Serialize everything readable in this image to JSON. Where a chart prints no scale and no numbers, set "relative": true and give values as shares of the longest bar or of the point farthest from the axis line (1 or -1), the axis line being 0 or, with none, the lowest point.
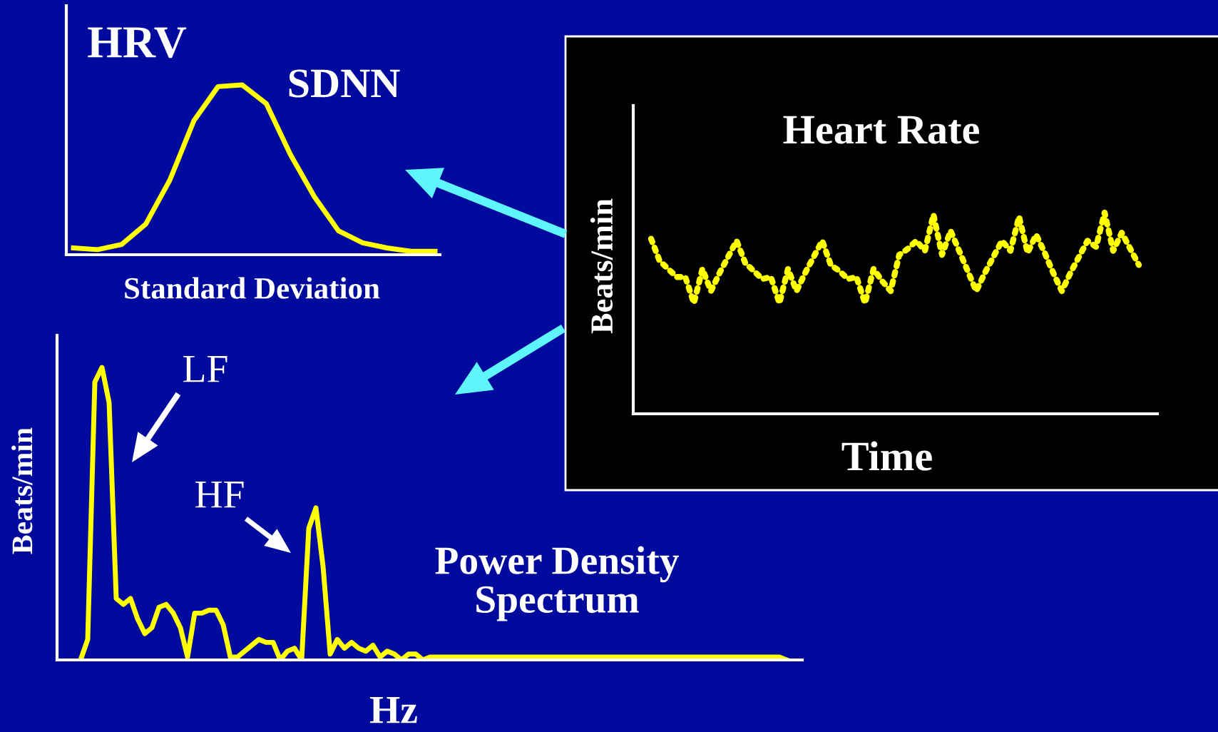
{
  "chart_data": [
    {
      "type": "line",
      "title": "HRV",
      "xlabel": "Standard Deviation",
      "annotations": [
        "SDNN"
      ],
      "relative": true,
      "line_style": "solid",
      "categories": [
        null,
        null,
        null,
        null,
        null,
        null,
        null,
        null,
        null,
        null,
        null,
        null,
        null,
        null,
        null,
        null
      ],
      "series": [
        {
          "color": "#ffff00",
          "values": [
            0.04,
            0.03,
            0.06,
            0.18,
            0.44,
            0.79,
            0.99,
            1.0,
            0.89,
            0.59,
            0.34,
            0.14,
            0.07,
            0.04,
            0.02,
            0.02
          ]
        }
      ]
    },
    {
      "type": "line",
      "title": "Heart Rate",
      "xlabel": "Time",
      "ylabel": "Beats/min",
      "relative": true,
      "line_style": "dotted",
      "categories": [
        null,
        null,
        null,
        null,
        null,
        null,
        null,
        null,
        null,
        null,
        null,
        null,
        null,
        null,
        null,
        null,
        null,
        null,
        null,
        null,
        null,
        null,
        null,
        null,
        null,
        null,
        null,
        null,
        null,
        null,
        null,
        null,
        null,
        null,
        null,
        null,
        null,
        null,
        null,
        null,
        null,
        null,
        null,
        null,
        null,
        null,
        null,
        null,
        null,
        null,
        null,
        null,
        null,
        null,
        null,
        null,
        null,
        null
      ],
      "series": [
        {
          "color": "#ffff00",
          "values": [
            0.87,
            0.76,
            0.72,
            0.68,
            0.68,
            0.55,
            0.72,
            0.61,
            0.7,
            0.78,
            0.86,
            0.75,
            0.71,
            0.67,
            0.68,
            0.55,
            0.72,
            0.61,
            0.7,
            0.78,
            0.86,
            0.74,
            0.71,
            0.67,
            0.68,
            0.55,
            0.72,
            0.66,
            0.61,
            0.79,
            0.82,
            0.86,
            0.81,
            0.99,
            0.79,
            0.91,
            0.81,
            0.71,
            0.61,
            0.7,
            0.78,
            0.86,
            0.81,
            0.98,
            0.8,
            0.89,
            0.8,
            0.7,
            0.61,
            0.7,
            0.78,
            0.86,
            0.83,
            1.0,
            0.81,
            0.9,
            0.82,
            0.74
          ]
        }
      ]
    },
    {
      "type": "line",
      "title": "Power Density\nSpectrum",
      "xlabel": "Hz",
      "ylabel": "Beats/min",
      "annotations": [
        "LF",
        "HF"
      ],
      "relative": true,
      "line_style": "solid",
      "categories": [
        null,
        null,
        null,
        null,
        null,
        null,
        null,
        null,
        null,
        null,
        null,
        null,
        null,
        null,
        null,
        null,
        null,
        null,
        null,
        null,
        null,
        null,
        null,
        null,
        null,
        null,
        null,
        null,
        null,
        null,
        null,
        null,
        null,
        null,
        null,
        null,
        null,
        null,
        null,
        null,
        null,
        null,
        null,
        null,
        null,
        null,
        null,
        null,
        null,
        null,
        null,
        null,
        null,
        null,
        null,
        null,
        null,
        null,
        null,
        null,
        null,
        null,
        null,
        null,
        null,
        null,
        null,
        null,
        null,
        null,
        null,
        null,
        null,
        null,
        null,
        null,
        null,
        null,
        null,
        null,
        null,
        null,
        null,
        null,
        null,
        null,
        null,
        null,
        null,
        null,
        null,
        null,
        null,
        null,
        null,
        null,
        null,
        null,
        null,
        null
      ],
      "series": [
        {
          "color": "#ffff00",
          "values": [
            0,
            0.07,
            0.95,
            1.0,
            0.88,
            0.21,
            0.19,
            0.21,
            0.14,
            0.09,
            0.11,
            0.18,
            0.19,
            0.16,
            0.11,
            0.01,
            0.16,
            0.16,
            0.17,
            0.17,
            0.12,
            0.01,
            0.01,
            0.03,
            0.05,
            0.07,
            0.06,
            0.06,
            0.0,
            0.03,
            0.04,
            0,
            0.45,
            0.52,
            0.32,
            0.02,
            0.07,
            0.04,
            0.06,
            0.04,
            0.03,
            0.05,
            0.01,
            0.03,
            0.02,
            0.0,
            0.02,
            0.02,
            0.0,
            0.01,
            0.01,
            0.01,
            0.01,
            0.01,
            0.01,
            0.01,
            0.01,
            0.01,
            0.01,
            0.01,
            0.01,
            0.01,
            0.01,
            0.01,
            0.01,
            0.01,
            0.01,
            0.01,
            0.01,
            0.01,
            0.01,
            0.01,
            0.01,
            0.01,
            0.01,
            0.01,
            0.01,
            0.01,
            0.01,
            0.01,
            0.01,
            0.01,
            0.01,
            0.01,
            0.01,
            0.01,
            0.01,
            0.01,
            0.01,
            0.01,
            0.01,
            0.01,
            0.01,
            0.01,
            0.01,
            0.01,
            0.01,
            0.01,
            0.01,
            0.0
          ]
        }
      ]
    }
  ]
}
